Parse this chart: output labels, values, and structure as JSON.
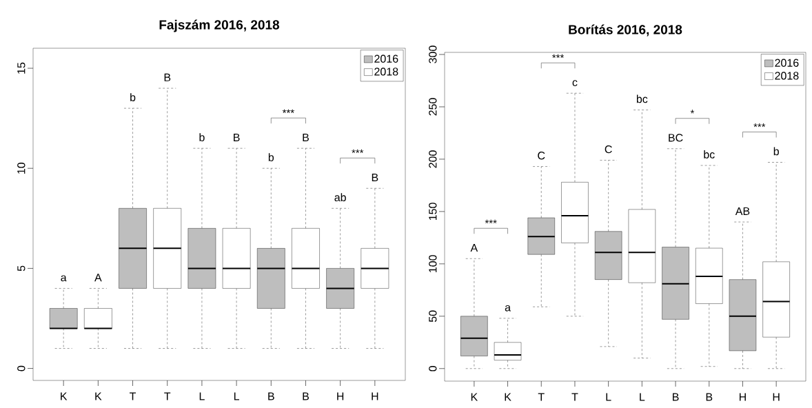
{
  "chart_data": [
    {
      "type": "box",
      "title": "Fajszám 2016, 2018",
      "categories": [
        "K",
        "K",
        "T",
        "T",
        "L",
        "L",
        "B",
        "B",
        "H",
        "H"
      ],
      "series": [
        {
          "name": "2016",
          "color": "#bebebe",
          "boxes": [
            {
              "low": 1,
              "q1": 2,
              "median": 2,
              "q3": 3,
              "high": 4
            },
            null,
            {
              "low": 1,
              "q1": 4,
              "median": 6,
              "q3": 8,
              "high": 13
            },
            null,
            {
              "low": 1,
              "q1": 4,
              "median": 5,
              "q3": 7,
              "high": 11
            },
            null,
            {
              "low": 1,
              "q1": 3,
              "median": 5,
              "q3": 6,
              "high": 10
            },
            null,
            {
              "low": 1,
              "q1": 3,
              "median": 4,
              "q3": 5,
              "high": 8
            },
            null
          ]
        },
        {
          "name": "2018",
          "color": "#ffffff",
          "boxes": [
            null,
            {
              "low": 1,
              "q1": 2,
              "median": 2,
              "q3": 3,
              "high": 4
            },
            null,
            {
              "low": 1,
              "q1": 4,
              "median": 6,
              "q3": 8,
              "high": 14
            },
            null,
            {
              "low": 1,
              "q1": 4,
              "median": 5,
              "q3": 7,
              "high": 11
            },
            null,
            {
              "low": 1,
              "q1": 4,
              "median": 5,
              "q3": 7,
              "high": 11
            },
            null,
            {
              "low": 1,
              "q1": 4,
              "median": 5,
              "q3": 6,
              "high": 9
            }
          ]
        }
      ],
      "ylim": [
        -0.6,
        16
      ],
      "yticks": [
        0,
        5,
        10,
        15
      ],
      "legend": "top right",
      "annotations": [
        "a",
        "A",
        "b",
        "B",
        "b",
        "B",
        "b",
        "B",
        "ab",
        "B",
        "***",
        "***"
      ]
    },
    {
      "type": "box",
      "title": "Borítás 2016, 2018",
      "categories": [
        "K",
        "K",
        "T",
        "T",
        "L",
        "L",
        "B",
        "B",
        "H",
        "H"
      ],
      "series": [
        {
          "name": "2016",
          "color": "#bebebe",
          "boxes": [
            {
              "low": 0,
              "q1": 12,
              "median": 29,
              "q3": 50,
              "high": 105
            },
            null,
            {
              "low": 59,
              "q1": 109,
              "median": 126,
              "q3": 144,
              "high": 193
            },
            null,
            {
              "low": 21,
              "q1": 85,
              "median": 111,
              "q3": 131,
              "high": 199
            },
            null,
            {
              "low": 0,
              "q1": 47,
              "median": 81,
              "q3": 116,
              "high": 210
            },
            null,
            {
              "low": 0,
              "q1": 17,
              "median": 50,
              "q3": 85,
              "high": 140
            },
            null
          ]
        },
        {
          "name": "2018",
          "color": "#ffffff",
          "boxes": [
            null,
            {
              "low": 0,
              "q1": 8,
              "median": 13,
              "q3": 25,
              "high": 48
            },
            null,
            {
              "low": 50,
              "q1": 120,
              "median": 146,
              "q3": 178,
              "high": 263
            },
            null,
            {
              "low": 10,
              "q1": 82,
              "median": 111,
              "q3": 152,
              "high": 247
            },
            null,
            {
              "low": 2,
              "q1": 62,
              "median": 88,
              "q3": 115,
              "high": 194
            },
            null,
            {
              "low": 0,
              "q1": 30,
              "median": 64,
              "q3": 102,
              "high": 197
            }
          ]
        }
      ],
      "ylim": [
        -12,
        302
      ],
      "yticks": [
        0,
        50,
        100,
        150,
        200,
        250,
        300
      ],
      "legend": "top right",
      "annotations": [
        "A",
        "a",
        "C",
        "c",
        "C",
        "bc",
        "BC",
        "bc",
        "AB",
        "b",
        "***",
        "***",
        "*",
        "***"
      ]
    }
  ]
}
